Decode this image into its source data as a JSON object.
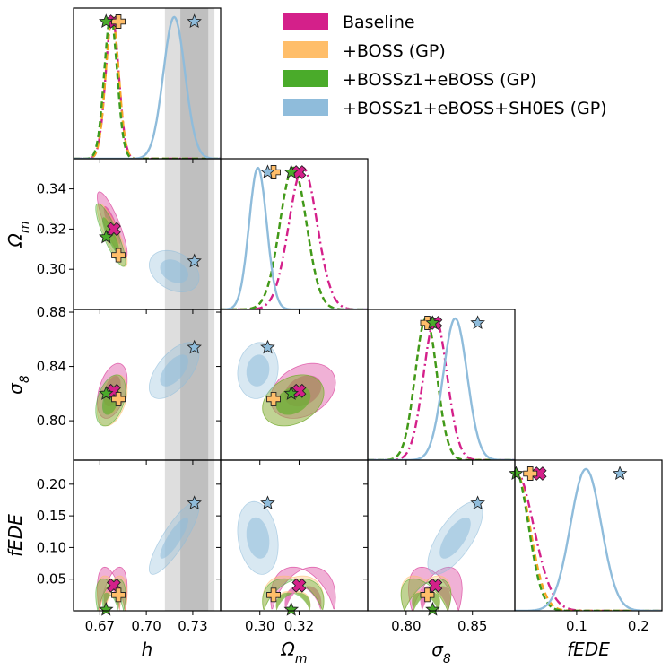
{
  "chart_data": {
    "type": "corner",
    "parameters": [
      {
        "key": "h",
        "label": "h",
        "range": [
          0.653,
          0.748
        ],
        "ticks": [
          "0.67",
          "0.70",
          "0.73"
        ]
      },
      {
        "key": "Om",
        "label": "Ω",
        "label_sub": "m",
        "range": [
          0.28,
          0.355
        ],
        "ticks": [
          "0.30",
          "0.32"
        ]
      },
      {
        "key": "s8",
        "label": "σ",
        "label_sub": "8",
        "range": [
          0.771,
          0.882
        ],
        "ticks": [
          "0.80",
          "0.85"
        ]
      },
      {
        "key": "fEDE",
        "label": "fEDE",
        "range": [
          0.0,
          0.238
        ],
        "ticks": [
          "0.1",
          "0.2"
        ]
      }
    ],
    "y_ticks": {
      "Om": [
        "0.30",
        "0.32",
        "0.34"
      ],
      "s8": [
        "0.80",
        "0.84",
        "0.88"
      ],
      "fEDE": [
        "0.05",
        "0.10",
        "0.15",
        "0.20"
      ]
    },
    "series": [
      {
        "name": "Baseline",
        "color": "#d4208a",
        "line": "dashdot",
        "marker": "cross",
        "best_fit": {
          "h": 0.679,
          "Om": 0.32,
          "s8": 0.822,
          "fEDE": 0.04
        },
        "mean": {
          "h": 0.678,
          "Om": 0.322,
          "s8": 0.822,
          "fEDE": 0.0
        },
        "sigma": {
          "h": 0.0042,
          "Om": 0.0072,
          "s8": 0.0088,
          "fEDE": 0.03
        },
        "half_normal": {
          "fEDE": true
        },
        "rho": {
          "h-Om": -0.85,
          "h-s8": 0.4,
          "h-fEDE": 0.5,
          "Om-s8": 0.3,
          "Om-fEDE": 0.3,
          "s8-fEDE": 0.5
        }
      },
      {
        "name": "+BOSS (GP)",
        "color": "#f5a623",
        "fill": "#ffbe6a",
        "line": "dashed",
        "marker": "plus",
        "best_fit": {
          "h": 0.682,
          "Om": 0.307,
          "s8": 0.816,
          "fEDE": 0.025
        },
        "mean": {
          "h": 0.678,
          "Om": 0.317,
          "s8": 0.815,
          "fEDE": 0.0
        },
        "sigma": {
          "h": 0.0042,
          "Om": 0.0068,
          "s8": 0.0082,
          "fEDE": 0.024
        },
        "half_normal": {
          "fEDE": true
        },
        "rho": {
          "h-Om": -0.85,
          "h-s8": 0.4,
          "h-fEDE": 0.5,
          "Om-s8": 0.3,
          "Om-fEDE": 0.3,
          "s8-fEDE": 0.5
        }
      },
      {
        "name": "+BOSSz1+eBOSS (GP)",
        "color": "#3c9b1e",
        "fill": "#4aab2a",
        "line": "dashed",
        "marker": "star",
        "best_fit": {
          "h": 0.674,
          "Om": 0.316,
          "s8": 0.82,
          "fEDE": 0.002
        },
        "mean": {
          "h": 0.677,
          "Om": 0.317,
          "s8": 0.815,
          "fEDE": 0.0
        },
        "sigma": {
          "h": 0.0042,
          "Om": 0.0068,
          "s8": 0.0082,
          "fEDE": 0.022
        },
        "half_normal": {
          "fEDE": true
        },
        "rho": {
          "h-Om": -0.85,
          "h-s8": 0.4,
          "h-fEDE": 0.5,
          "Om-s8": 0.3,
          "Om-fEDE": 0.3,
          "s8-fEDE": 0.5
        }
      },
      {
        "name": "+BOSSz1+eBOSS+SH0ES (GP)",
        "color": "#8fbcdb",
        "line": "solid",
        "marker": "star",
        "best_fit": {
          "h": 0.731,
          "Om": 0.304,
          "s8": 0.854,
          "fEDE": 0.17
        },
        "mean": {
          "h": 0.718,
          "Om": 0.299,
          "s8": 0.837,
          "fEDE": 0.115
        },
        "sigma": {
          "h": 0.007,
          "Om": 0.0045,
          "s8": 0.009,
          "fEDE": 0.025
        },
        "half_normal": {},
        "rho": {
          "h-Om": -0.3,
          "h-s8": 0.6,
          "h-fEDE": 0.85,
          "Om-s8": 0.1,
          "Om-fEDE": -0.2,
          "s8-fEDE": 0.7
        }
      }
    ],
    "h_bands": [
      {
        "range": [
          0.712,
          0.744
        ],
        "color": "#bdbdbd",
        "opacity": 0.5
      },
      {
        "range": [
          0.722,
          0.74
        ],
        "color": "#a0a0a0",
        "opacity": 0.5
      }
    ],
    "legend_position": "top-right"
  }
}
